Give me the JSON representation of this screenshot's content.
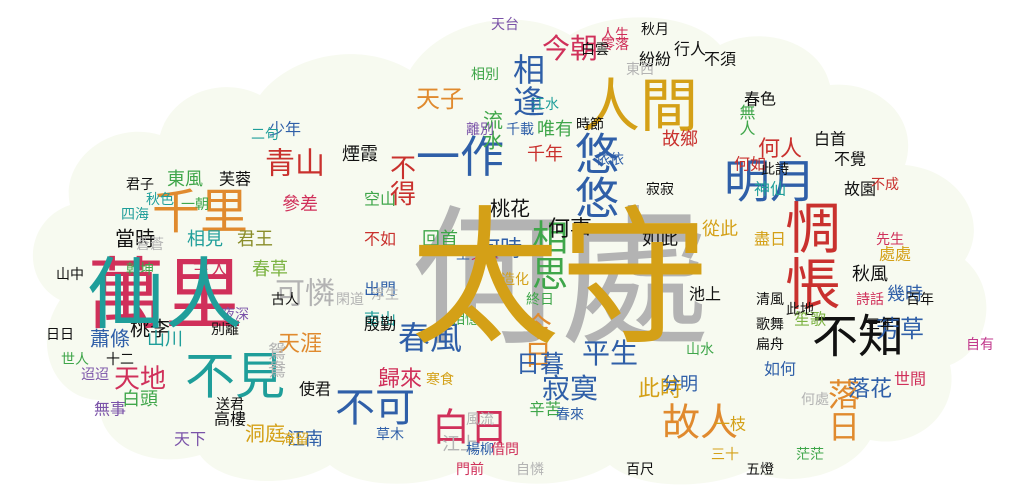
{
  "palette": {
    "background": "#f7faf0",
    "gray": "#b3b3b3",
    "black": "#111111",
    "blue": "#2f5fa8",
    "orange": "#e08a2e",
    "green": "#3fa64a",
    "red": "#c9312e",
    "purple": "#7a52a8",
    "teal": "#1f9e9a",
    "crimson": "#d0305a",
    "olive": "#8a8d2a",
    "lime": "#7cb342",
    "gold": "#d4a017",
    "magenta": "#c2388c"
  },
  "words": [
    {
      "text": "何處",
      "color": "gray"
    },
    {
      "text": "萬里",
      "color": "crimson"
    },
    {
      "text": "千里",
      "color": "orange"
    },
    {
      "text": "人間",
      "color": "gold"
    },
    {
      "text": "惆悵",
      "color": "red"
    },
    {
      "text": "不知",
      "color": "black"
    },
    {
      "text": "明月",
      "color": "blue"
    },
    {
      "text": "悠悠",
      "color": "blue"
    },
    {
      "text": "一作",
      "color": "blue"
    },
    {
      "text": "不見",
      "color": "teal"
    },
    {
      "text": "不可",
      "color": "blue"
    },
    {
      "text": "白日",
      "color": "crimson"
    },
    {
      "text": "故人",
      "color": "orange"
    },
    {
      "text": "落日",
      "color": "orange"
    },
    {
      "text": "相思",
      "color": "green"
    },
    {
      "text": "相逢",
      "color": "blue"
    },
    {
      "text": "今朝",
      "color": "crimson"
    },
    {
      "text": "今日",
      "color": "orange"
    },
    {
      "text": "日暮",
      "color": "blue"
    },
    {
      "text": "春風",
      "color": "blue"
    },
    {
      "text": "青山",
      "color": "red"
    },
    {
      "text": "天子",
      "color": "orange"
    },
    {
      "text": "不得",
      "color": "red"
    },
    {
      "text": "可憐",
      "color": "gray"
    },
    {
      "text": "天地",
      "color": "crimson"
    },
    {
      "text": "天涯",
      "color": "orange"
    },
    {
      "text": "歸來",
      "color": "crimson"
    },
    {
      "text": "寂寞",
      "color": "blue"
    },
    {
      "text": "平生",
      "color": "blue"
    },
    {
      "text": "此時",
      "color": "gold"
    },
    {
      "text": "芳草",
      "color": "blue"
    },
    {
      "text": "落花",
      "color": "blue"
    },
    {
      "text": "何人",
      "color": "red"
    },
    {
      "text": "流水",
      "color": "green"
    },
    {
      "text": "桃花",
      "color": "black"
    },
    {
      "text": "何時",
      "color": "blue"
    },
    {
      "text": "何事",
      "color": "black"
    },
    {
      "text": "千年",
      "color": "red"
    },
    {
      "text": "唯有",
      "color": "green"
    },
    {
      "text": "故鄉",
      "color": "red"
    },
    {
      "text": "無人",
      "color": "green"
    },
    {
      "text": "何如",
      "color": "red"
    },
    {
      "text": "不覺",
      "color": "black"
    },
    {
      "text": "神仙",
      "color": "teal"
    },
    {
      "text": "故園",
      "color": "black"
    },
    {
      "text": "春色",
      "color": "black"
    },
    {
      "text": "少年",
      "color": "blue"
    },
    {
      "text": "參差",
      "color": "crimson"
    },
    {
      "text": "東風",
      "color": "green"
    },
    {
      "text": "芙蓉",
      "color": "black"
    },
    {
      "text": "當時",
      "color": "black"
    },
    {
      "text": "相見",
      "color": "teal"
    },
    {
      "text": "君王",
      "color": "olive"
    },
    {
      "text": "春草",
      "color": "lime"
    },
    {
      "text": "主人",
      "color": "crimson"
    },
    {
      "text": "桃李",
      "color": "black"
    },
    {
      "text": "山川",
      "color": "teal"
    },
    {
      "text": "蕭條",
      "color": "blue"
    },
    {
      "text": "白頭",
      "color": "green"
    },
    {
      "text": "洞庭",
      "color": "gold"
    },
    {
      "text": "江南",
      "color": "blue"
    },
    {
      "text": "天下",
      "color": "purple"
    },
    {
      "text": "高樓",
      "color": "black"
    },
    {
      "text": "無事",
      "color": "purple"
    },
    {
      "text": "使君",
      "color": "black"
    },
    {
      "text": "鴛鴦",
      "color": "gray"
    },
    {
      "text": "煙霞",
      "color": "black"
    },
    {
      "text": "空山",
      "color": "green"
    },
    {
      "text": "不如",
      "color": "red"
    },
    {
      "text": "回首",
      "color": "green"
    },
    {
      "text": "南山",
      "color": "teal"
    },
    {
      "text": "殷勤",
      "color": "black"
    },
    {
      "text": "出門",
      "color": "blue"
    },
    {
      "text": "如此",
      "color": "black"
    },
    {
      "text": "從此",
      "color": "gold"
    },
    {
      "text": "秋風",
      "color": "black"
    },
    {
      "text": "笙歌",
      "color": "lime"
    },
    {
      "text": "幾時",
      "color": "blue"
    },
    {
      "text": "處處",
      "color": "gold"
    },
    {
      "text": "分明",
      "color": "blue"
    },
    {
      "text": "辛苦",
      "color": "green"
    },
    {
      "text": "一枝",
      "color": "gold"
    },
    {
      "text": "行人",
      "color": "black"
    },
    {
      "text": "紛紛",
      "color": "black"
    },
    {
      "text": "江上",
      "color": "gray"
    },
    {
      "text": "世間",
      "color": "crimson"
    },
    {
      "text": "自有",
      "color": "magenta"
    },
    {
      "text": "如何",
      "color": "blue"
    },
    {
      "text": "白首",
      "color": "black"
    },
    {
      "text": "此詩",
      "color": "black"
    },
    {
      "text": "不須",
      "color": "black"
    },
    {
      "text": "池上",
      "color": "black"
    },
    {
      "text": "清風",
      "color": "black"
    },
    {
      "text": "扁舟",
      "color": "black"
    },
    {
      "text": "盡日",
      "color": "gold"
    },
    {
      "text": "風流",
      "color": "gray"
    },
    {
      "text": "楊柳",
      "color": "blue"
    },
    {
      "text": "草木",
      "color": "blue"
    },
    {
      "text": "乾坤",
      "color": "green"
    },
    {
      "text": "二句",
      "color": "teal"
    },
    {
      "text": "山中",
      "color": "black"
    },
    {
      "text": "日日",
      "color": "black"
    },
    {
      "text": "五燈",
      "color": "black"
    },
    {
      "text": "茫茫",
      "color": "green"
    },
    {
      "text": "三年",
      "color": "black"
    },
    {
      "text": "先生",
      "color": "crimson"
    },
    {
      "text": "蒼蒼",
      "color": "gray"
    },
    {
      "text": "一朝",
      "color": "green"
    },
    {
      "text": "四海",
      "color": "teal"
    },
    {
      "text": "秋色",
      "color": "teal"
    },
    {
      "text": "君子",
      "color": "black"
    },
    {
      "text": "詩話",
      "color": "crimson"
    },
    {
      "text": "百年",
      "color": "black"
    },
    {
      "text": "至今",
      "color": "blue"
    },
    {
      "text": "時節",
      "color": "black"
    },
    {
      "text": "千載",
      "color": "blue"
    },
    {
      "text": "山水",
      "color": "green"
    },
    {
      "text": "歌舞",
      "color": "black"
    },
    {
      "text": "此地",
      "color": "black"
    },
    {
      "text": "依依",
      "color": "blue"
    },
    {
      "text": "造化",
      "color": "gold"
    },
    {
      "text": "寂寂",
      "color": "black"
    },
    {
      "text": "天台",
      "color": "purple"
    },
    {
      "text": "相別",
      "color": "green"
    },
    {
      "text": "離別",
      "color": "purple"
    },
    {
      "text": "江水",
      "color": "teal"
    },
    {
      "text": "迢迢",
      "color": "purple"
    },
    {
      "text": "古人",
      "color": "black"
    },
    {
      "text": "世人",
      "color": "green"
    },
    {
      "text": "十二",
      "color": "black"
    },
    {
      "text": "送君",
      "color": "black"
    },
    {
      "text": "寒食",
      "color": "gold"
    },
    {
      "text": "終日",
      "color": "green"
    },
    {
      "text": "浮生",
      "color": "gray"
    },
    {
      "text": "閑道",
      "color": "gray"
    },
    {
      "text": "門前",
      "color": "crimson"
    },
    {
      "text": "借問",
      "color": "crimson"
    },
    {
      "text": "淹留",
      "color": "gold"
    },
    {
      "text": "別離",
      "color": "black"
    },
    {
      "text": "夜深",
      "color": "purple"
    },
    {
      "text": "相憶",
      "color": "green"
    },
    {
      "text": "自憐",
      "color": "gray"
    },
    {
      "text": "東西",
      "color": "gray"
    },
    {
      "text": "秋月",
      "color": "black"
    },
    {
      "text": "人生",
      "color": "crimson"
    },
    {
      "text": "文章",
      "color": "crimson"
    },
    {
      "text": "零落",
      "color": "crimson"
    },
    {
      "text": "白雲",
      "color": "black"
    },
    {
      "text": "何處",
      "color": "gray"
    },
    {
      "text": "春來",
      "color": "blue"
    },
    {
      "text": "百尺",
      "color": "black"
    },
    {
      "text": "不成",
      "color": "red"
    },
    {
      "text": "三十",
      "color": "gold"
    },
    {
      "text": "太守",
      "color": "gold"
    },
    {
      "text": "仙人",
      "color": "teal"
    }
  ]
}
